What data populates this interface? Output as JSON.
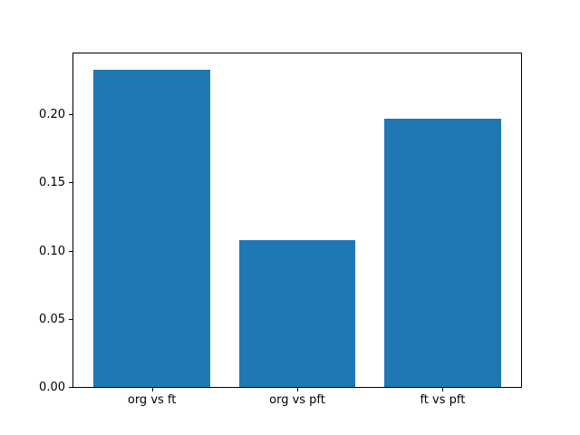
{
  "figure": {
    "background": "#ffffff"
  },
  "chart_data": {
    "type": "bar",
    "categories": [
      "org vs ft",
      "org vs pft",
      "ft vs pft"
    ],
    "values": [
      0.233,
      0.108,
      0.197
    ],
    "title": "",
    "xlabel": "",
    "ylabel": "",
    "ylim": [
      0,
      0.2447
    ],
    "xlim": [
      -0.54,
      2.54
    ],
    "bar_width": 0.8,
    "yticks": [
      0,
      0.05,
      0.1,
      0.15,
      0.2
    ],
    "ytick_labels": [
      "0.00",
      "0.05",
      "0.10",
      "0.15",
      "0.20"
    ],
    "bar_color": "#1f77b4",
    "axis_color": "#000000",
    "grid": false,
    "legend": "none"
  }
}
